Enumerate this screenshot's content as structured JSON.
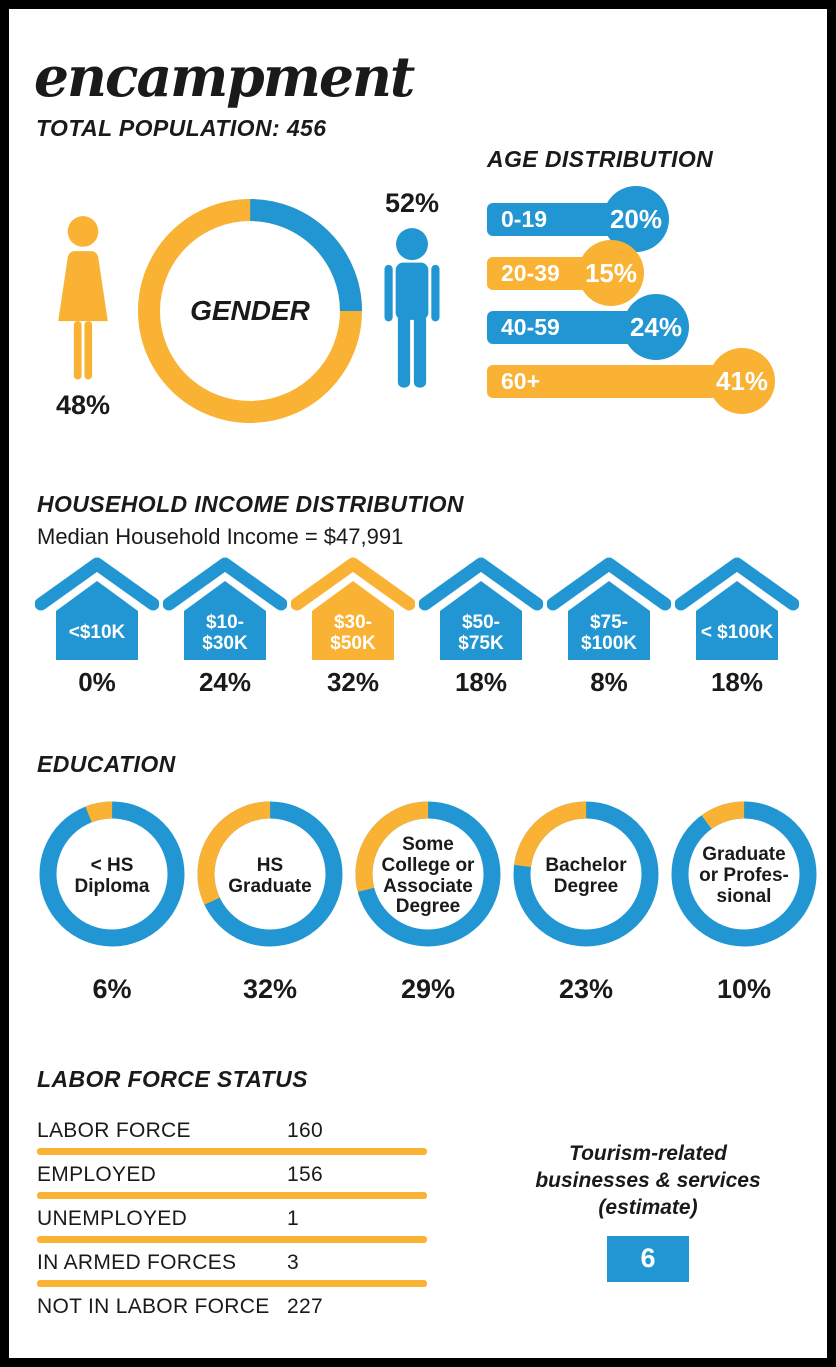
{
  "colors": {
    "blue": "#2196D3",
    "yellow": "#F9B233",
    "text": "#1A1A1A"
  },
  "header": {
    "title": "encampment",
    "total_population": "TOTAL POPULATION: 456"
  },
  "gender": {
    "center_label": "GENDER",
    "female": {
      "label": "Female",
      "value": 48,
      "pct_label": "48%",
      "color": "yellow"
    },
    "male": {
      "label": "Male",
      "value": 52,
      "pct_label": "52%",
      "color": "blue"
    }
  },
  "age": {
    "heading": "AGE DISTRIBUTION",
    "items": [
      {
        "label": "0-19",
        "value": 20,
        "pct_label": "20%",
        "color": "blue"
      },
      {
        "label": "20-39",
        "value": 15,
        "pct_label": "15%",
        "color": "yellow"
      },
      {
        "label": "40-59",
        "value": 24,
        "pct_label": "24%",
        "color": "blue"
      },
      {
        "label": "60+",
        "value": 41,
        "pct_label": "41%",
        "color": "yellow"
      }
    ]
  },
  "income": {
    "heading": "HOUSEHOLD INCOME DISTRIBUTION",
    "subtitle": "Median Household Income = $47,991",
    "items": [
      {
        "label": "<$10K",
        "value": 0,
        "pct_label": "0%",
        "color": "blue"
      },
      {
        "label": "$10-\n$30K",
        "value": 24,
        "pct_label": "24%",
        "color": "blue"
      },
      {
        "label": "$30-\n$50K",
        "value": 32,
        "pct_label": "32%",
        "color": "yellow"
      },
      {
        "label": "$50-\n$75K",
        "value": 18,
        "pct_label": "18%",
        "color": "blue"
      },
      {
        "label": "$75-\n$100K",
        "value": 8,
        "pct_label": "8%",
        "color": "blue"
      },
      {
        "label": "< $100K",
        "value": 18,
        "pct_label": "18%",
        "color": "blue"
      }
    ]
  },
  "education": {
    "heading": "EDUCATION",
    "items": [
      {
        "label": "< HS\nDiploma",
        "value": 6,
        "pct_label": "6%"
      },
      {
        "label": "HS\nGraduate",
        "value": 32,
        "pct_label": "32%"
      },
      {
        "label": "Some\nCollege or\nAssociate\nDegree",
        "value": 29,
        "pct_label": "29%"
      },
      {
        "label": "Bachelor\nDegree",
        "value": 23,
        "pct_label": "23%"
      },
      {
        "label": "Graduate\nor Profes-\nsional",
        "value": 10,
        "pct_label": "10%"
      }
    ]
  },
  "labor": {
    "heading": "LABOR FORCE STATUS",
    "rows": [
      {
        "label": "LABOR FORCE",
        "value": "160"
      },
      {
        "label": "EMPLOYED",
        "value": "156"
      },
      {
        "label": "UNEMPLOYED",
        "value": "1"
      },
      {
        "label": "IN ARMED FORCES",
        "value": "3"
      },
      {
        "label": "NOT IN LABOR FORCE",
        "value": "227"
      }
    ]
  },
  "tourism": {
    "text": "Tourism-related\nbusinesses & services\n(estimate)",
    "value": "6"
  },
  "chart_data": [
    {
      "type": "pie",
      "title": "GENDER",
      "slices": [
        {
          "label": "Female",
          "value": 48,
          "color": "#F9B233"
        },
        {
          "label": "Male",
          "value": 52,
          "color": "#2196D3"
        }
      ]
    },
    {
      "type": "bar",
      "title": "AGE DISTRIBUTION",
      "unit": "%",
      "categories": [
        "0-19",
        "20-39",
        "40-59",
        "60+"
      ],
      "values": [
        20,
        15,
        24,
        41
      ]
    },
    {
      "type": "bar",
      "title": "HOUSEHOLD INCOME DISTRIBUTION",
      "subtitle": "Median Household Income = $47,991",
      "unit": "%",
      "categories": [
        "<$10K",
        "$10-$30K",
        "$30-$50K",
        "$50-$75K",
        "$75-$100K",
        "< $100K"
      ],
      "values": [
        0,
        24,
        32,
        18,
        8,
        18
      ],
      "highlight_category": "$30-$50K"
    },
    {
      "type": "pie",
      "title": "EDUCATION",
      "unit": "%",
      "categories": [
        "< HS Diploma",
        "HS Graduate",
        "Some College or Associate Degree",
        "Bachelor Degree",
        "Graduate or Professional"
      ],
      "values": [
        6,
        32,
        29,
        23,
        10
      ]
    },
    {
      "type": "table",
      "title": "LABOR FORCE STATUS",
      "rows": [
        [
          "LABOR FORCE",
          160
        ],
        [
          "EMPLOYED",
          156
        ],
        [
          "UNEMPLOYED",
          1
        ],
        [
          "IN ARMED FORCES",
          3
        ],
        [
          "NOT IN LABOR FORCE",
          227
        ]
      ]
    },
    {
      "type": "table",
      "title": "Tourism-related businesses & services (estimate)",
      "rows": [
        [
          "Tourism-related businesses & services (estimate)",
          6
        ]
      ]
    }
  ]
}
